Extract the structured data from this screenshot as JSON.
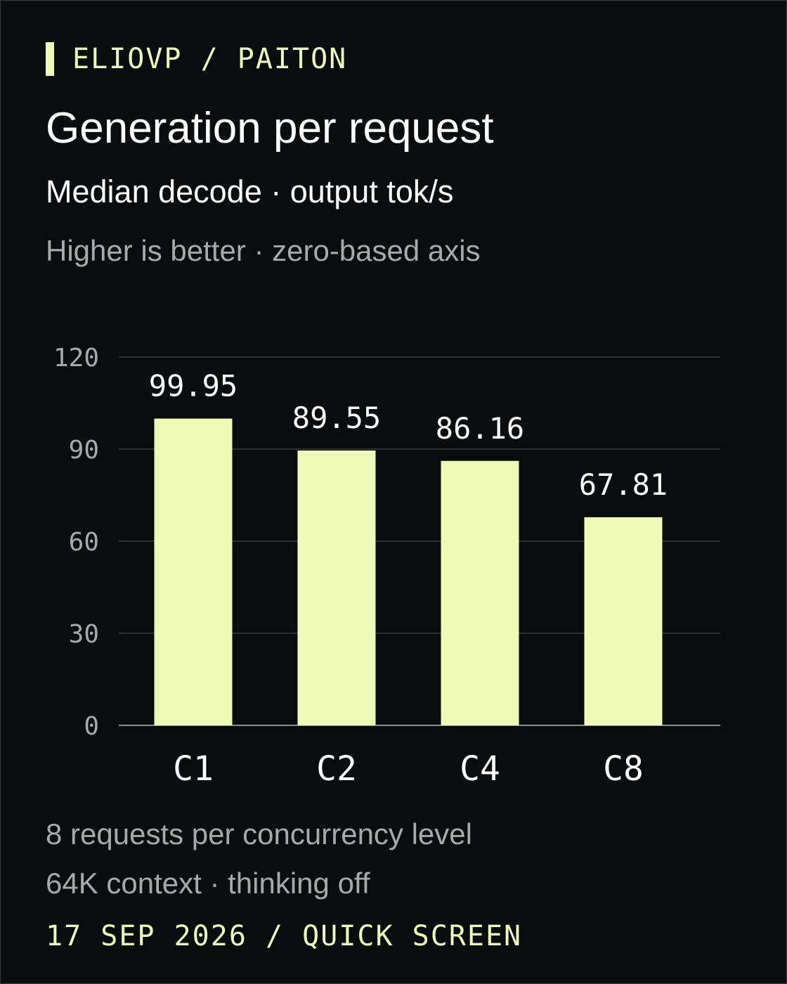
{
  "header": {
    "brand": "ELIOVP / PAITON",
    "title": "Generation per request",
    "subtitle": "Median decode · output tok/s",
    "note": "Higher is better · zero-based axis"
  },
  "footer": {
    "line1": "8 requests per concurrency level",
    "line2": "64K context · thinking off",
    "date": "17 SEP 2026 / QUICK SCREEN"
  },
  "colors": {
    "accent": "#eefab5",
    "background": "#0b0c0d",
    "grid": "#3a3d40",
    "axis_text": "#a6aaa8",
    "label_text": "#ffffff"
  },
  "chart_data": {
    "type": "bar",
    "title": "Generation per request",
    "subtitle": "Median decode · output tok/s",
    "xlabel": "",
    "ylabel": "",
    "categories": [
      "C1",
      "C2",
      "C4",
      "C8"
    ],
    "values": [
      99.95,
      89.55,
      86.16,
      67.81
    ],
    "value_labels": [
      "99.95",
      "89.55",
      "86.16",
      "67.81"
    ],
    "yticks": [
      0,
      30,
      60,
      90,
      120
    ],
    "ylim": [
      0,
      120
    ],
    "grid": true,
    "legend": "none"
  }
}
